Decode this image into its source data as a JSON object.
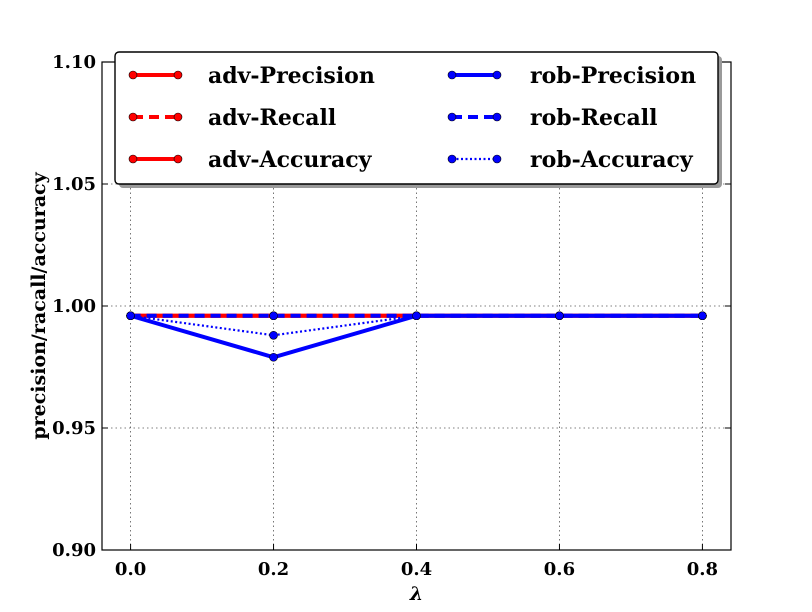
{
  "chart_data": {
    "type": "line",
    "title": "",
    "xlabel": "λ",
    "ylabel": "precision/racall/accuracy",
    "x": [
      0.0,
      0.2,
      0.4,
      0.6,
      0.8
    ],
    "xticks": [
      "0.0",
      "0.2",
      "0.4",
      "0.6",
      "0.8"
    ],
    "yticks": [
      "0.90",
      "0.95",
      "1.00",
      "1.05",
      "1.10"
    ],
    "xlim": [
      -0.04,
      0.84
    ],
    "ylim": [
      0.9,
      1.1
    ],
    "grid": true,
    "legend_position": "top",
    "series": [
      {
        "name": "adv-Precision",
        "values": [
          0.996,
          0.996,
          0.996,
          0.996,
          0.996
        ],
        "color": "#ff0000",
        "style": "solid"
      },
      {
        "name": "adv-Recall",
        "values": [
          0.996,
          0.996,
          0.996,
          0.996,
          0.996
        ],
        "color": "#ff0000",
        "style": "dashed"
      },
      {
        "name": "adv-Accuracy",
        "values": [
          0.996,
          0.996,
          0.996,
          0.996,
          0.996
        ],
        "color": "#ff0000",
        "style": "solid"
      },
      {
        "name": "rob-Precision",
        "values": [
          0.996,
          0.979,
          0.996,
          0.996,
          0.996
        ],
        "color": "#0000ff",
        "style": "solid"
      },
      {
        "name": "rob-Recall",
        "values": [
          0.996,
          0.996,
          0.996,
          0.996,
          0.996
        ],
        "color": "#0000ff",
        "style": "dashed"
      },
      {
        "name": "rob-Accuracy",
        "values": [
          0.996,
          0.988,
          0.996,
          0.996,
          0.996
        ],
        "color": "#0000ff",
        "style": "dotted"
      }
    ]
  }
}
